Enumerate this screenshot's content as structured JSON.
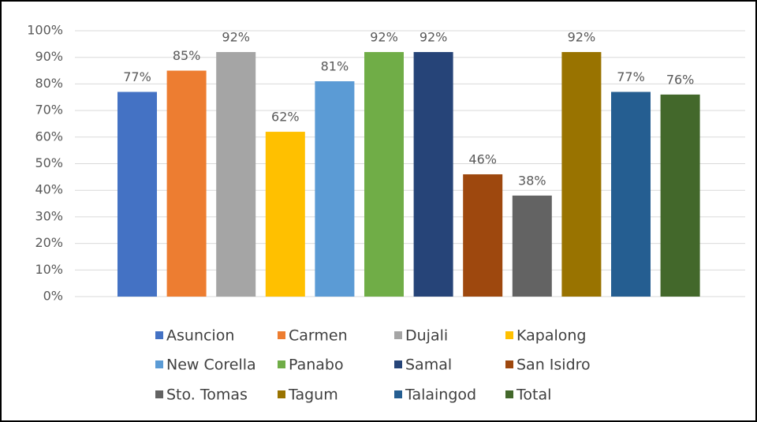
{
  "chart_data": {
    "type": "bar",
    "categories": [
      null
    ],
    "series": [
      {
        "name": "Asuncion",
        "color": "#4472c4",
        "values": [
          77
        ],
        "value_labels": [
          "77%"
        ]
      },
      {
        "name": "Carmen",
        "color": "#ed7d31",
        "values": [
          85
        ],
        "value_labels": [
          "85%"
        ]
      },
      {
        "name": "Dujali",
        "color": "#a5a5a5",
        "values": [
          92
        ],
        "value_labels": [
          "92%"
        ]
      },
      {
        "name": "Kapalong",
        "color": "#ffc000",
        "values": [
          62
        ],
        "value_labels": [
          "62%"
        ]
      },
      {
        "name": "New Corella",
        "color": "#5b9bd5",
        "values": [
          81
        ],
        "value_labels": [
          "81%"
        ]
      },
      {
        "name": "Panabo",
        "color": "#70ad47",
        "values": [
          92
        ],
        "value_labels": [
          "92%"
        ]
      },
      {
        "name": "Samal",
        "color": "#264478",
        "values": [
          92
        ],
        "value_labels": [
          "92%"
        ]
      },
      {
        "name": "San Isidro",
        "color": "#9e480e",
        "values": [
          46
        ],
        "value_labels": [
          "46%"
        ]
      },
      {
        "name": "Sto. Tomas",
        "color": "#636363",
        "values": [
          38
        ],
        "value_labels": [
          "38%"
        ]
      },
      {
        "name": "Tagum",
        "color": "#997300",
        "values": [
          92
        ],
        "value_labels": [
          "92%"
        ]
      },
      {
        "name": "Talaingod",
        "color": "#255e91",
        "values": [
          77
        ],
        "value_labels": [
          "77%"
        ]
      },
      {
        "name": "Total",
        "color": "#43682b",
        "values": [
          76
        ],
        "value_labels": [
          "76%"
        ]
      }
    ],
    "ylim": [
      0,
      100
    ],
    "yticks": [
      {
        "value": 0,
        "label": "0%"
      },
      {
        "value": 10,
        "label": "10%"
      },
      {
        "value": 20,
        "label": "20%"
      },
      {
        "value": 30,
        "label": "30%"
      },
      {
        "value": 40,
        "label": "40%"
      },
      {
        "value": 50,
        "label": "50%"
      },
      {
        "value": 60,
        "label": "60%"
      },
      {
        "value": 70,
        "label": "70%"
      },
      {
        "value": 80,
        "label": "80%"
      },
      {
        "value": 90,
        "label": "90%"
      },
      {
        "value": 100,
        "label": "100%"
      }
    ],
    "grid": true,
    "legend": "bottom"
  }
}
